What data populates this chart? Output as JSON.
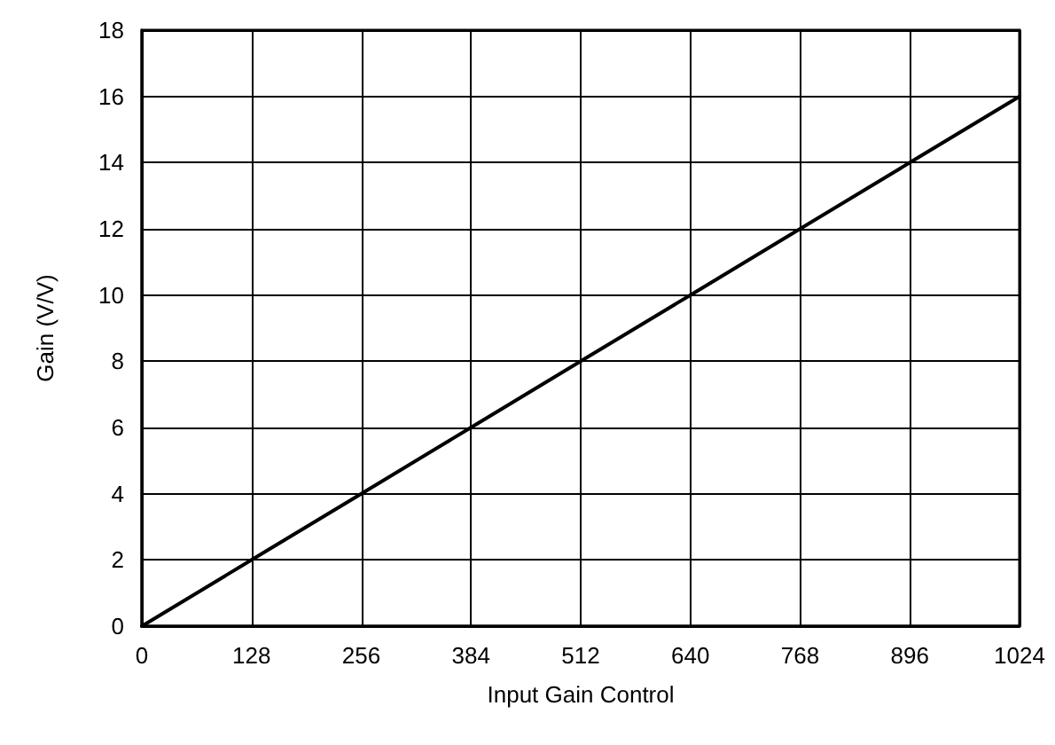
{
  "chart_data": {
    "type": "line",
    "xlabel": "Input Gain Control",
    "ylabel": "Gain (V/V)",
    "x": [
      0,
      128,
      256,
      384,
      512,
      640,
      768,
      896,
      1024
    ],
    "series": [
      {
        "color": "#000000",
        "values": [
          0,
          2,
          4,
          6,
          8,
          10,
          12,
          14,
          16
        ]
      }
    ],
    "xlim": [
      0,
      1024
    ],
    "xticks": [
      0,
      128,
      256,
      384,
      512,
      640,
      768,
      896,
      1024
    ],
    "ylim": [
      0,
      18
    ],
    "yticks": [
      0,
      2,
      4,
      6,
      8,
      10,
      12,
      14,
      16,
      18
    ],
    "grid": true,
    "marker": "none",
    "line_style": "solid"
  }
}
